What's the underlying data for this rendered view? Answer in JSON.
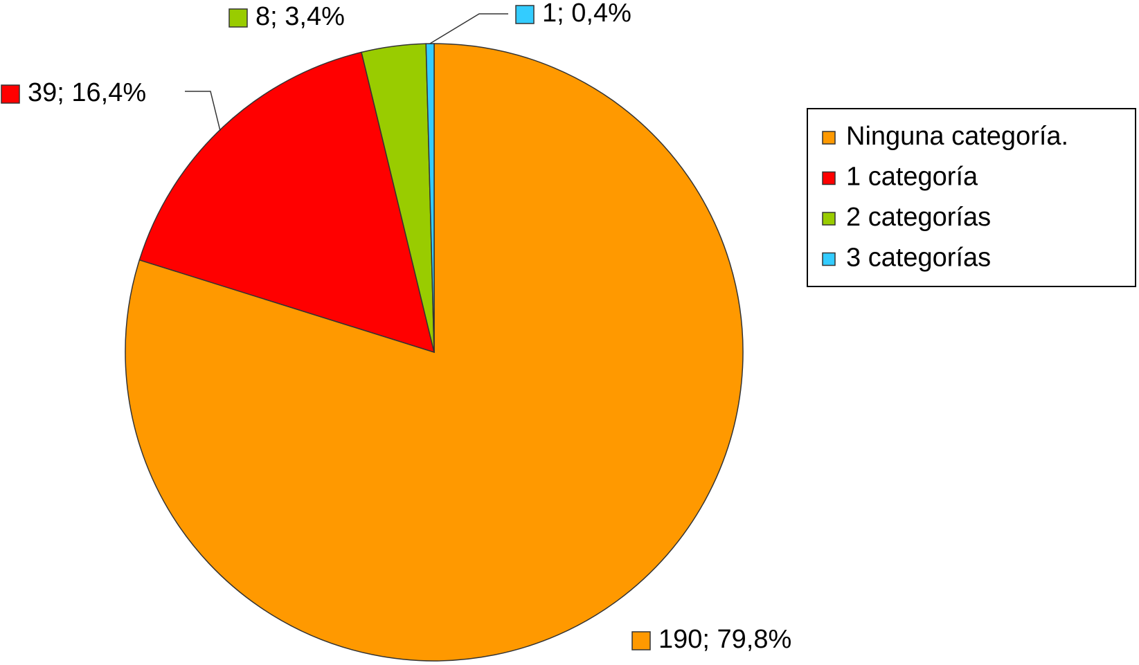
{
  "chart_data": {
    "type": "pie",
    "categories": [
      "Ninguna categoría.",
      "1 categoría",
      "2 categorías",
      "3 categorías"
    ],
    "values": [
      190,
      39,
      8,
      1
    ],
    "value_labels": [
      "190; 79,8%",
      "39; 16,4%",
      "8; 3,4%",
      "1; 0,4%"
    ],
    "colors": [
      "#ff9900",
      "#ff0000",
      "#99cc00",
      "#33ccff"
    ],
    "legend": "right"
  }
}
